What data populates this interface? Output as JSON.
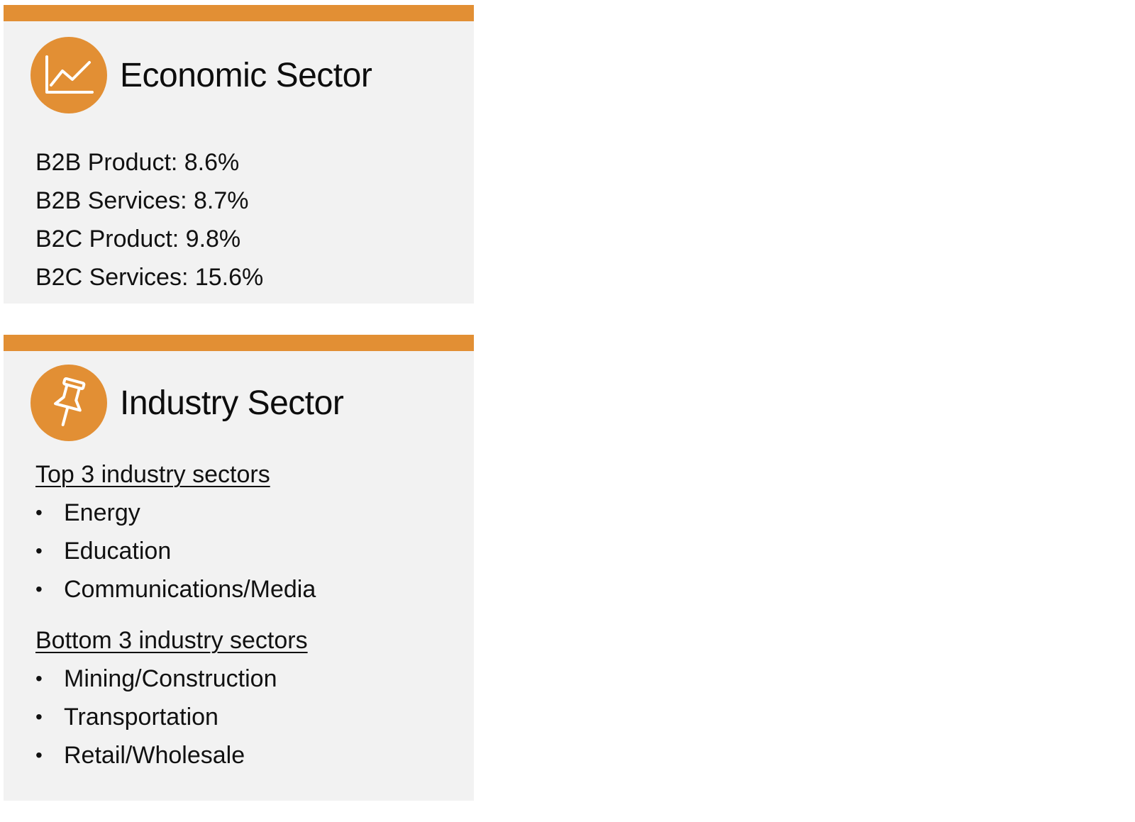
{
  "colors": {
    "accent": "#e28f34",
    "card_background": "#f2f2f2",
    "text": "#111111"
  },
  "economic": {
    "icon": "line-chart-icon",
    "title": "Economic Sector",
    "stats": [
      "B2B Product: 8.6%",
      "B2B Services: 8.7%",
      "B2C Product: 9.8%",
      "B2C Services: 15.6%"
    ]
  },
  "industry": {
    "icon": "pushpin-icon",
    "title": "Industry Sector",
    "top_heading": "Top 3 industry sectors",
    "top_items": [
      "Energy",
      "Education",
      "Communications/Media"
    ],
    "bottom_heading": "Bottom 3 industry sectors",
    "bottom_items": [
      "Mining/Construction",
      "Transportation",
      "Retail/Wholesale"
    ],
    "bullet_char": "•"
  }
}
